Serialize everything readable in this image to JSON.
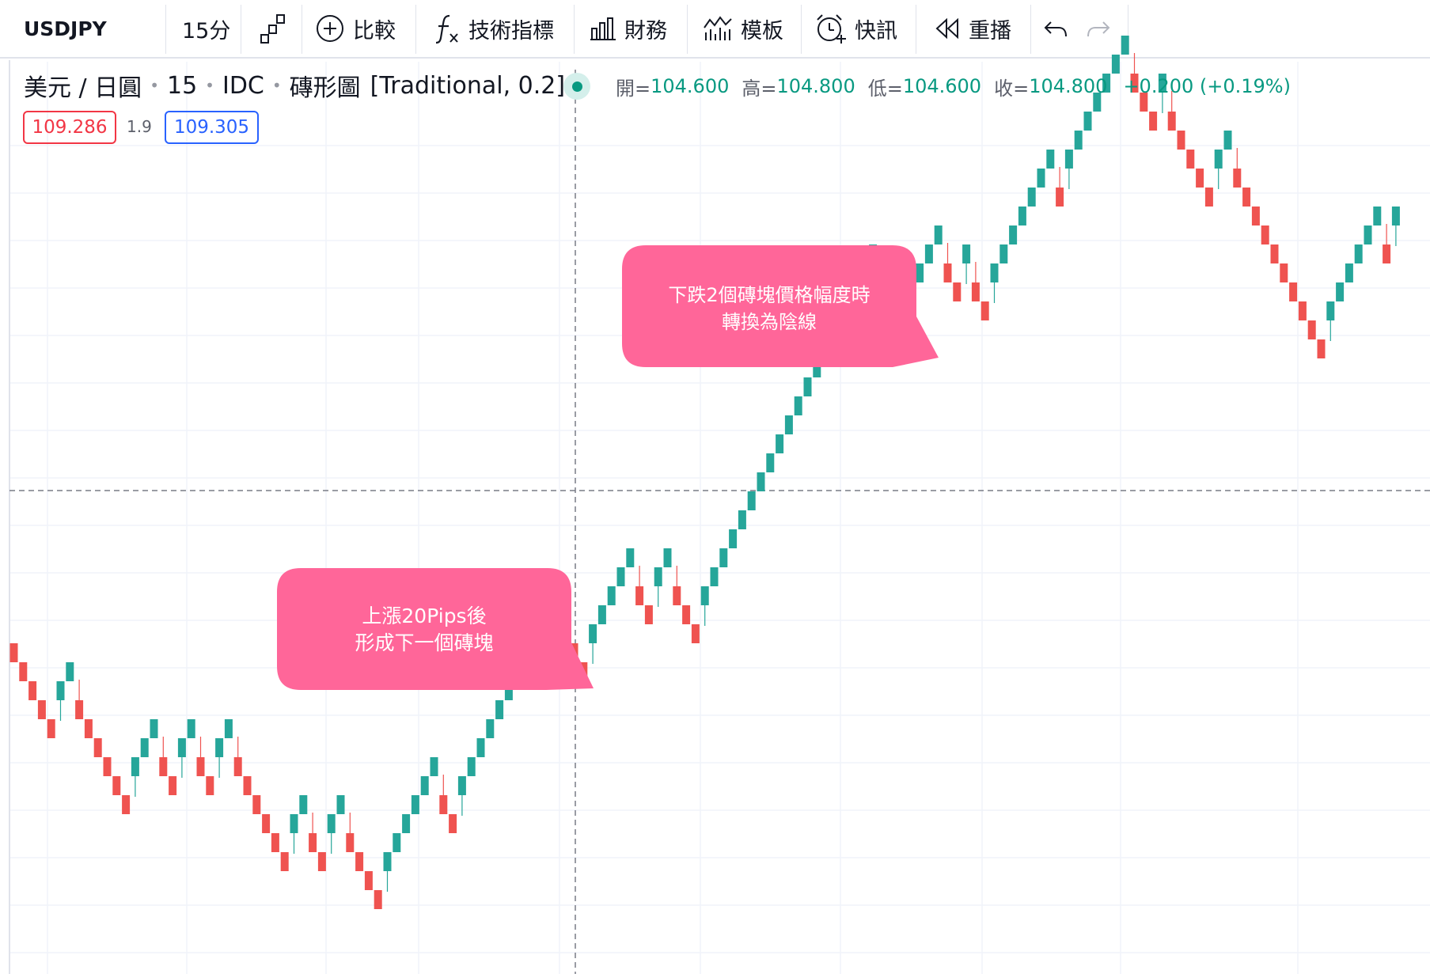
{
  "toolbar": {
    "symbol": "USDJPY",
    "interval": "15分",
    "compare_label": "比較",
    "indicators_label": "技術指標",
    "financials_label": "財務",
    "templates_label": "模板",
    "alerts_label": "快訊",
    "replay_label": "重播"
  },
  "legend": {
    "title": "美元 / 日圓",
    "interval": "15",
    "exchange": "IDC",
    "chart_type": "磚形圖",
    "params": "[Traditional, 0.2]",
    "open_label": "開=",
    "open": "104.600",
    "high_label": "高=",
    "high": "104.800",
    "low_label": "低=",
    "low": "104.600",
    "close_label": "收=",
    "close": "104.800",
    "change": "+0.200 (+0.19%)",
    "sell_price": "109.286",
    "spread": "1.9",
    "buy_price": "109.305"
  },
  "chart_data": {
    "type": "renko",
    "box_size": 0.2,
    "brick_directions": [
      -1,
      -1,
      -1,
      -1,
      -1,
      1,
      1,
      -1,
      -1,
      -1,
      -1,
      -1,
      -1,
      1,
      1,
      1,
      -1,
      -1,
      1,
      1,
      -1,
      -1,
      1,
      1,
      -1,
      -1,
      -1,
      -1,
      -1,
      -1,
      1,
      1,
      -1,
      -1,
      1,
      1,
      -1,
      -1,
      -1,
      -1,
      1,
      1,
      1,
      1,
      1,
      1,
      -1,
      -1,
      1,
      1,
      1,
      1,
      1,
      1,
      1,
      1,
      1,
      1,
      1,
      -1,
      -1,
      -1,
      1,
      1,
      1,
      1,
      1,
      -1,
      -1,
      1,
      1,
      -1,
      -1,
      -1,
      1,
      1,
      1,
      1,
      1,
      1,
      1,
      1,
      1,
      1,
      1,
      1,
      1,
      1,
      1,
      1,
      1,
      1,
      1,
      -1,
      -1,
      -1,
      1,
      1,
      1,
      1,
      -1,
      -1,
      1,
      -1,
      -1,
      1,
      1,
      1,
      1,
      1,
      1,
      1,
      -1,
      1,
      1,
      1,
      1,
      1,
      1,
      1,
      -1,
      -1,
      -1,
      1,
      -1,
      -1,
      -1,
      -1,
      -1,
      1,
      1,
      -1,
      -1,
      -1,
      -1,
      -1,
      -1,
      -1,
      -1,
      -1,
      -1,
      1,
      1,
      1,
      1,
      1,
      1,
      -1,
      1
    ],
    "up_color": "#26a69a",
    "down_color": "#ef5350",
    "grid": true,
    "crosshair": true
  },
  "annotations": [
    {
      "line1": "上漲20Pips後",
      "line2": "形成下一個磚塊",
      "color": "#ff6699"
    },
    {
      "line1": "下跌2個磚塊價格幅度時",
      "line2": "轉換為陰線",
      "color": "#ff6699"
    }
  ]
}
